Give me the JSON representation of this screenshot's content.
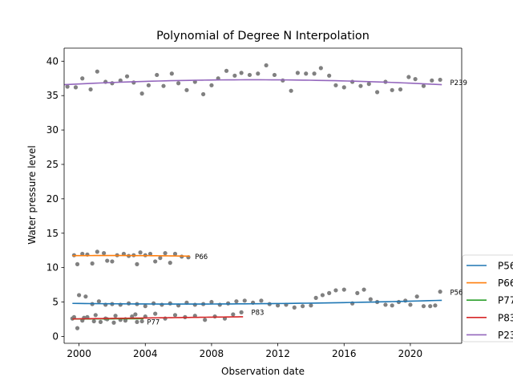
{
  "chart_data": {
    "type": "scatter",
    "title": "Polynomial of Degree N Interpolation",
    "xlabel": "Observation date",
    "ylabel": "Water pressure level",
    "xlim": [
      1999.1,
      2023.1
    ],
    "ylim": [
      -1,
      41.9
    ],
    "x_ticks": [
      2000,
      2004,
      2008,
      2012,
      2016,
      2020
    ],
    "x_tick_labels": [
      "2000",
      "2004",
      "2008",
      "2012",
      "2016",
      "2020"
    ],
    "y_ticks": [
      0,
      5,
      10,
      15,
      20,
      25,
      30,
      35,
      40
    ],
    "y_tick_labels": [
      "0",
      "5",
      "10",
      "15",
      "20",
      "25",
      "30",
      "35",
      "40"
    ],
    "grid": false,
    "legend_position": "right",
    "point_color": "#808080",
    "series": [
      {
        "name": "P56",
        "label": "P56",
        "color": "#1f77b4",
        "x_range": [
          1999.6,
          2021.9
        ],
        "coeffs": [
          4.75,
          0.02,
          0.0022
        ],
        "points": [
          [
            2000.0,
            6.0
          ],
          [
            2000.4,
            5.8
          ],
          [
            2000.8,
            4.7
          ],
          [
            2001.2,
            5.1
          ],
          [
            2001.6,
            4.6
          ],
          [
            2002.0,
            4.7
          ],
          [
            2002.5,
            4.6
          ],
          [
            2003.0,
            4.8
          ],
          [
            2003.5,
            4.7
          ],
          [
            2004.0,
            4.4
          ],
          [
            2004.5,
            4.8
          ],
          [
            2005.0,
            4.6
          ],
          [
            2005.5,
            4.8
          ],
          [
            2006.0,
            4.5
          ],
          [
            2006.5,
            4.9
          ],
          [
            2007.0,
            4.6
          ],
          [
            2007.5,
            4.7
          ],
          [
            2008.0,
            5.0
          ],
          [
            2008.5,
            4.6
          ],
          [
            2009.0,
            4.8
          ],
          [
            2009.5,
            5.1
          ],
          [
            2010.0,
            5.2
          ],
          [
            2010.5,
            4.9
          ],
          [
            2011.0,
            5.2
          ],
          [
            2011.5,
            4.7
          ],
          [
            2012.0,
            4.5
          ],
          [
            2012.5,
            4.6
          ],
          [
            2013.0,
            4.2
          ],
          [
            2013.5,
            4.4
          ],
          [
            2014.0,
            4.5
          ],
          [
            2014.3,
            5.6
          ],
          [
            2014.7,
            6.0
          ],
          [
            2015.1,
            6.3
          ],
          [
            2015.5,
            6.7
          ],
          [
            2016.0,
            6.8
          ],
          [
            2016.5,
            4.8
          ],
          [
            2016.8,
            6.3
          ],
          [
            2017.2,
            6.8
          ],
          [
            2017.6,
            5.4
          ],
          [
            2018.0,
            5.0
          ],
          [
            2018.5,
            4.6
          ],
          [
            2018.9,
            4.5
          ],
          [
            2019.3,
            5.0
          ],
          [
            2019.7,
            5.2
          ],
          [
            2020.0,
            4.6
          ],
          [
            2020.4,
            5.8
          ],
          [
            2020.8,
            4.4
          ],
          [
            2021.2,
            4.4
          ],
          [
            2021.5,
            4.5
          ],
          [
            2021.8,
            6.5
          ]
        ]
      },
      {
        "name": "P66",
        "label": "P66",
        "color": "#ff7f0e",
        "x_range": [
          1999.6,
          2006.7
        ],
        "coeffs": [
          11.75,
          -0.01,
          -0.004
        ],
        "points": [
          [
            1999.7,
            11.8
          ],
          [
            1999.9,
            10.5
          ],
          [
            2000.2,
            12.0
          ],
          [
            2000.5,
            11.9
          ],
          [
            2000.8,
            10.6
          ],
          [
            2001.1,
            12.3
          ],
          [
            2001.5,
            12.1
          ],
          [
            2001.7,
            11.0
          ],
          [
            2002.0,
            10.9
          ],
          [
            2002.3,
            11.8
          ],
          [
            2002.7,
            12.0
          ],
          [
            2003.0,
            11.7
          ],
          [
            2003.3,
            11.8
          ],
          [
            2003.5,
            10.5
          ],
          [
            2003.7,
            12.2
          ],
          [
            2004.0,
            11.8
          ],
          [
            2004.3,
            12.0
          ],
          [
            2004.6,
            10.9
          ],
          [
            2004.9,
            11.4
          ],
          [
            2005.2,
            12.1
          ],
          [
            2005.5,
            10.7
          ],
          [
            2005.8,
            12.0
          ],
          [
            2006.2,
            11.6
          ],
          [
            2006.6,
            11.5
          ]
        ]
      },
      {
        "name": "P77",
        "label": "P77",
        "color": "#2ca02c",
        "x_range": [
          1999.6,
          2003.9
        ],
        "coeffs": [
          2.55,
          0.01,
          0.0
        ],
        "points": [
          [
            1999.6,
            2.6
          ],
          [
            1999.9,
            1.2
          ],
          [
            2000.2,
            2.3
          ],
          [
            2000.5,
            2.8
          ],
          [
            2000.9,
            2.2
          ],
          [
            2001.3,
            2.1
          ],
          [
            2001.7,
            2.5
          ],
          [
            2002.1,
            2.0
          ],
          [
            2002.5,
            2.4
          ],
          [
            2002.8,
            2.3
          ],
          [
            2003.2,
            2.9
          ],
          [
            2003.5,
            2.1
          ],
          [
            2003.8,
            2.2
          ]
        ]
      },
      {
        "name": "P83",
        "label": "P83",
        "color": "#d62728",
        "x_range": [
          1999.6,
          2009.9
        ],
        "coeffs": [
          2.7,
          0.03,
          0.0
        ],
        "points": [
          [
            1999.7,
            2.8
          ],
          [
            2000.3,
            2.7
          ],
          [
            2001.0,
            3.1
          ],
          [
            2001.6,
            2.6
          ],
          [
            2002.2,
            3.0
          ],
          [
            2002.8,
            2.5
          ],
          [
            2003.4,
            3.2
          ],
          [
            2004.0,
            2.9
          ],
          [
            2004.6,
            3.3
          ],
          [
            2005.2,
            2.6
          ],
          [
            2005.8,
            3.1
          ],
          [
            2006.4,
            2.8
          ],
          [
            2007.0,
            3.0
          ],
          [
            2007.6,
            2.4
          ],
          [
            2008.2,
            2.9
          ],
          [
            2008.8,
            2.6
          ],
          [
            2009.3,
            3.2
          ],
          [
            2009.8,
            3.5
          ]
        ]
      },
      {
        "name": "P239",
        "label": "P239",
        "color": "#9467bd",
        "x_range": [
          1999.1,
          2021.9
        ],
        "coeffs": [
          37.3,
          0.0,
          -0.0055
        ],
        "points": [
          [
            1999.3,
            36.3
          ],
          [
            1999.8,
            36.2
          ],
          [
            2000.2,
            37.5
          ],
          [
            2000.7,
            35.9
          ],
          [
            2001.1,
            38.5
          ],
          [
            2001.6,
            37.0
          ],
          [
            2002.0,
            36.8
          ],
          [
            2002.5,
            37.2
          ],
          [
            2002.9,
            37.8
          ],
          [
            2003.3,
            36.9
          ],
          [
            2003.8,
            35.3
          ],
          [
            2004.2,
            36.5
          ],
          [
            2004.7,
            38.0
          ],
          [
            2005.1,
            36.4
          ],
          [
            2005.6,
            38.2
          ],
          [
            2006.0,
            36.8
          ],
          [
            2006.5,
            35.8
          ],
          [
            2007.0,
            37.0
          ],
          [
            2007.5,
            35.2
          ],
          [
            2008.0,
            36.5
          ],
          [
            2008.4,
            37.5
          ],
          [
            2008.9,
            38.6
          ],
          [
            2009.4,
            37.9
          ],
          [
            2009.8,
            38.3
          ],
          [
            2010.3,
            38.0
          ],
          [
            2010.8,
            38.2
          ],
          [
            2011.3,
            39.4
          ],
          [
            2011.8,
            38.0
          ],
          [
            2012.3,
            37.2
          ],
          [
            2012.8,
            35.7
          ],
          [
            2013.2,
            38.3
          ],
          [
            2013.7,
            38.2
          ],
          [
            2014.2,
            38.2
          ],
          [
            2014.6,
            39.0
          ],
          [
            2015.1,
            37.9
          ],
          [
            2015.5,
            36.5
          ],
          [
            2016.0,
            36.2
          ],
          [
            2016.5,
            37.0
          ],
          [
            2017.0,
            36.4
          ],
          [
            2017.5,
            36.7
          ],
          [
            2018.0,
            35.5
          ],
          [
            2018.5,
            37.0
          ],
          [
            2018.9,
            35.8
          ],
          [
            2019.4,
            35.9
          ],
          [
            2019.9,
            37.7
          ],
          [
            2020.3,
            37.4
          ],
          [
            2020.8,
            36.4
          ],
          [
            2021.3,
            37.2
          ],
          [
            2021.8,
            37.3
          ]
        ]
      }
    ],
    "annotations": [
      {
        "text": "P56",
        "x": 2022.4,
        "y": 6.4
      },
      {
        "text": "P66",
        "x": 2007.0,
        "y": 11.6
      },
      {
        "text": "P77",
        "x": 2004.1,
        "y": 2.1
      },
      {
        "text": "P83",
        "x": 2010.4,
        "y": 3.5
      },
      {
        "text": "P239",
        "x": 2022.4,
        "y": 36.9
      }
    ]
  }
}
